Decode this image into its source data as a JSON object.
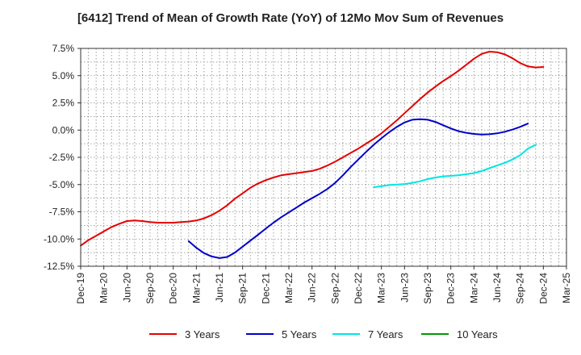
{
  "chart_data": {
    "type": "line",
    "title": "[6412]  Trend of Mean of Growth Rate (YoY) of 12Mo Mov Sum of Revenues",
    "xlabel": "",
    "ylabel": "",
    "ylim": [
      -12.5,
      7.5
    ],
    "grid": true,
    "legend_position": "bottom",
    "x_ticks": [
      "Dec-19",
      "Mar-20",
      "Jun-20",
      "Sep-20",
      "Dec-20",
      "Mar-21",
      "Jun-21",
      "Sep-21",
      "Dec-21",
      "Mar-22",
      "Jun-22",
      "Sep-22",
      "Dec-22",
      "Mar-23",
      "Jun-23",
      "Sep-23",
      "Dec-23",
      "Mar-24",
      "Jun-24",
      "Sep-24",
      "Dec-24",
      "Mar-25"
    ],
    "y_ticks": [
      "7.5%",
      "5.0%",
      "2.5%",
      "0.0%",
      "-2.5%",
      "-5.0%",
      "-7.5%",
      "-10.0%",
      "-12.5%"
    ],
    "y_tick_values": [
      7.5,
      5.0,
      2.5,
      0.0,
      -2.5,
      -5.0,
      -7.5,
      -10.0,
      -12.5
    ],
    "series": [
      {
        "name": "3 Years",
        "color": "#e60000",
        "start_index": 0,
        "values": [
          -10.6,
          -10.1,
          -9.7,
          -9.3,
          -8.9,
          -8.6,
          -8.35,
          -8.3,
          -8.35,
          -8.45,
          -8.5,
          -8.5,
          -8.5,
          -8.45,
          -8.4,
          -8.3,
          -8.1,
          -7.8,
          -7.4,
          -6.9,
          -6.3,
          -5.8,
          -5.3,
          -4.9,
          -4.6,
          -4.35,
          -4.15,
          -4.05,
          -3.95,
          -3.85,
          -3.75,
          -3.55,
          -3.25,
          -2.9,
          -2.5,
          -2.1,
          -1.7,
          -1.25,
          -0.8,
          -0.3,
          0.3,
          0.9,
          1.55,
          2.2,
          2.85,
          3.45,
          4.0,
          4.5,
          4.95,
          5.45,
          6.0,
          6.55,
          7.0,
          7.2,
          7.15,
          6.95,
          6.6,
          6.15,
          5.85,
          5.75,
          5.8
        ]
      },
      {
        "name": "5 Years",
        "color": "#0000cc",
        "start_index": 14,
        "values": [
          -10.2,
          -10.8,
          -11.3,
          -11.6,
          -11.75,
          -11.65,
          -11.25,
          -10.7,
          -10.15,
          -9.6,
          -9.05,
          -8.5,
          -8.0,
          -7.55,
          -7.1,
          -6.65,
          -6.25,
          -5.85,
          -5.4,
          -4.85,
          -4.15,
          -3.4,
          -2.7,
          -2.0,
          -1.35,
          -0.75,
          -0.2,
          0.3,
          0.7,
          0.95,
          1.0,
          0.95,
          0.75,
          0.45,
          0.15,
          -0.1,
          -0.25,
          -0.35,
          -0.4,
          -0.38,
          -0.3,
          -0.15,
          0.05,
          0.3,
          0.6
        ]
      },
      {
        "name": "7 Years",
        "color": "#00e5e5",
        "start_index": 38,
        "values": [
          -5.25,
          -5.15,
          -5.05,
          -5.0,
          -4.95,
          -4.85,
          -4.7,
          -4.5,
          -4.35,
          -4.25,
          -4.2,
          -4.15,
          -4.05,
          -3.95,
          -3.75,
          -3.5,
          -3.25,
          -3.0,
          -2.7,
          -2.3,
          -1.7,
          -1.35
        ]
      },
      {
        "name": "10 Years",
        "color": "#009900",
        "start_index": 0,
        "values": []
      }
    ]
  }
}
